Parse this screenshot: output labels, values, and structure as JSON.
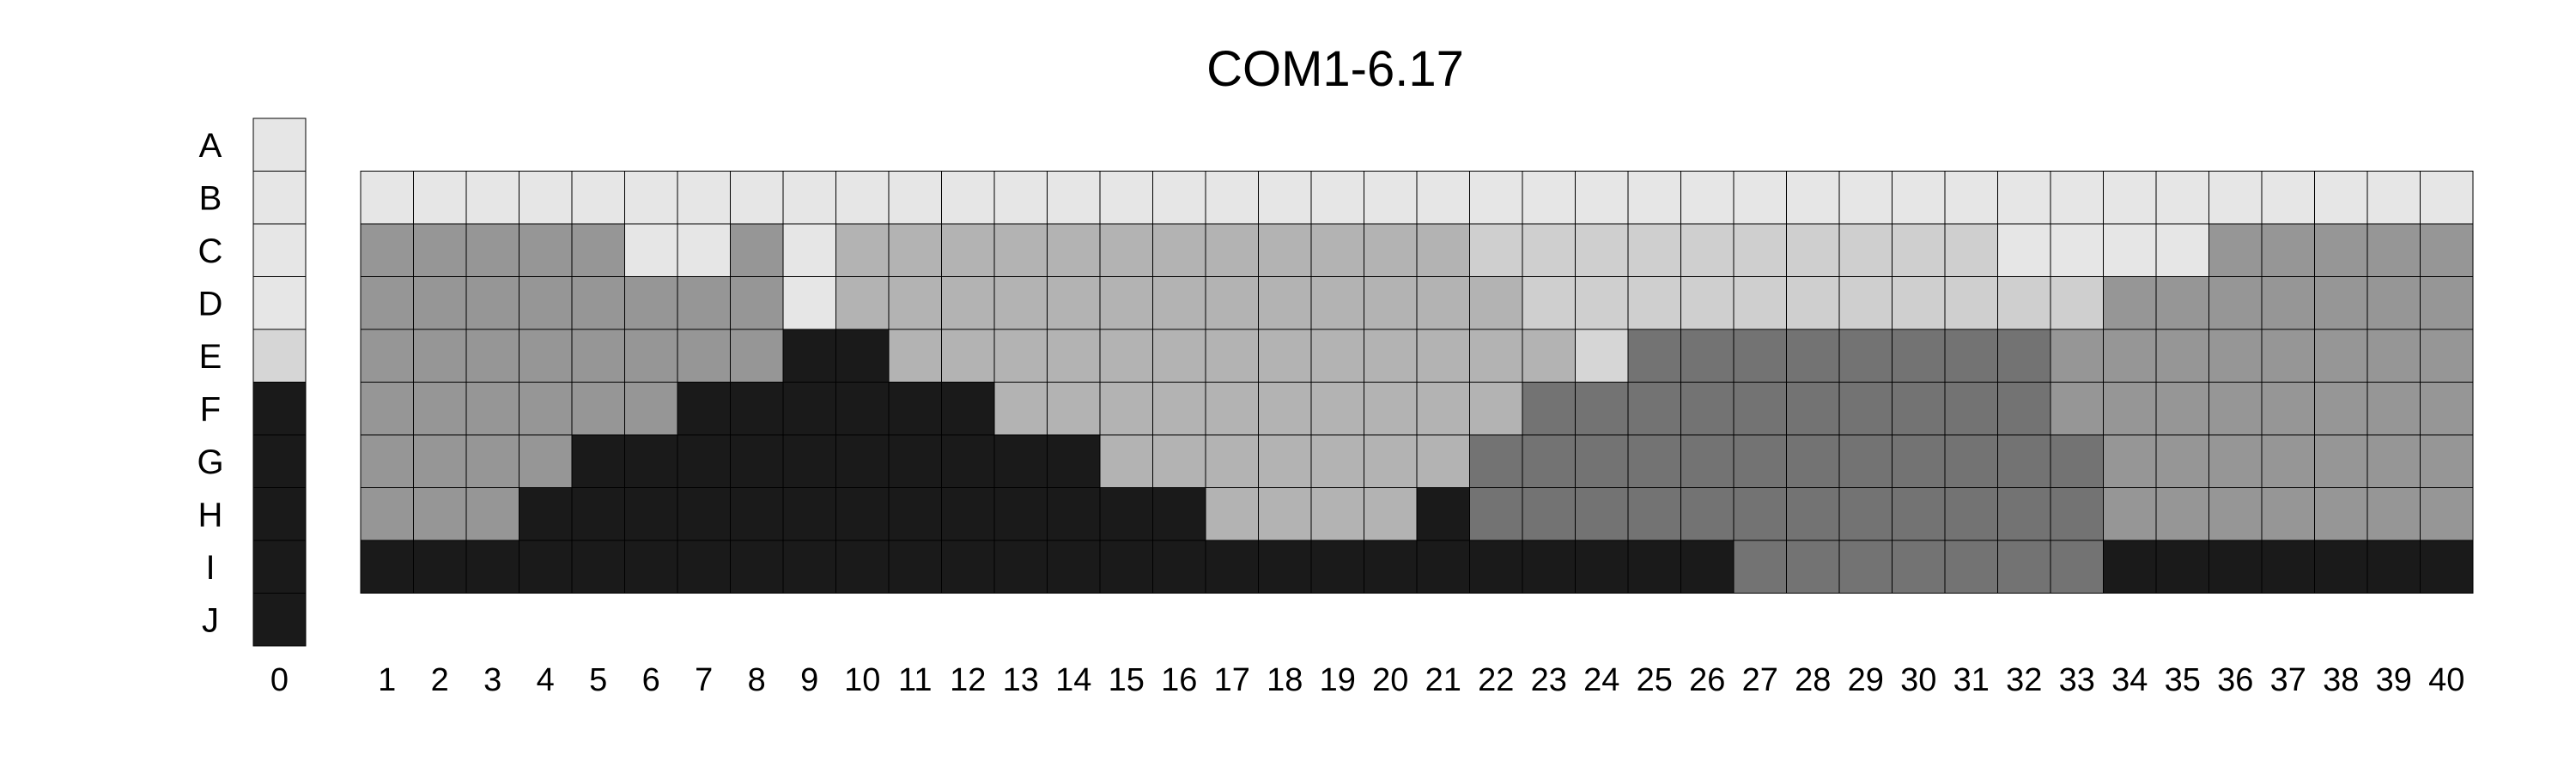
{
  "chart_data": {
    "type": "heatmap",
    "title": "COM1-6.17",
    "row_labels": [
      "A",
      "B",
      "C",
      "D",
      "E",
      "F",
      "G",
      "H",
      "I",
      "J"
    ],
    "column_labels": [
      "1",
      "2",
      "3",
      "4",
      "5",
      "6",
      "7",
      "8",
      "9",
      "10",
      "11",
      "12",
      "13",
      "14",
      "15",
      "16",
      "17",
      "18",
      "19",
      "20",
      "21",
      "22",
      "23",
      "24",
      "25",
      "26",
      "27",
      "28",
      "29",
      "30",
      "31",
      "32",
      "33",
      "34",
      "35",
      "36",
      "37",
      "38",
      "39",
      "40"
    ],
    "reference_column": {
      "label": "0",
      "values": [
        1,
        1,
        1,
        1,
        2,
        9,
        9,
        9,
        9,
        9
      ]
    },
    "grid_rows": [
      "B",
      "C",
      "D",
      "E",
      "F",
      "G",
      "H",
      "I"
    ],
    "values": [
      [
        1,
        1,
        1,
        1,
        1,
        1,
        1,
        1,
        1,
        1,
        1,
        1,
        1,
        1,
        1,
        1,
        1,
        1,
        1,
        1,
        1,
        1,
        1,
        1,
        1,
        1,
        1,
        1,
        1,
        1,
        1,
        1,
        1,
        1,
        1,
        1,
        1,
        1,
        1,
        1
      ],
      [
        6,
        6,
        6,
        6,
        6,
        1,
        1,
        6,
        1,
        4,
        4,
        4,
        4,
        4,
        4,
        4,
        4,
        4,
        4,
        4,
        4,
        3,
        3,
        3,
        3,
        3,
        3,
        3,
        3,
        3,
        3,
        1,
        1,
        1,
        1,
        6,
        6,
        6,
        6,
        6
      ],
      [
        6,
        6,
        6,
        6,
        6,
        6,
        6,
        6,
        1,
        4,
        4,
        4,
        4,
        4,
        4,
        4,
        4,
        4,
        4,
        4,
        4,
        4,
        3,
        3,
        3,
        3,
        3,
        3,
        3,
        3,
        3,
        3,
        3,
        6,
        6,
        6,
        6,
        6,
        6,
        6
      ],
      [
        6,
        6,
        6,
        6,
        6,
        6,
        6,
        6,
        9,
        9,
        4,
        4,
        4,
        4,
        4,
        4,
        4,
        4,
        4,
        4,
        4,
        4,
        4,
        2,
        8,
        8,
        8,
        8,
        8,
        8,
        8,
        8,
        6,
        6,
        6,
        6,
        6,
        6,
        6,
        6
      ],
      [
        6,
        6,
        6,
        6,
        6,
        6,
        9,
        9,
        9,
        9,
        9,
        9,
        4,
        4,
        4,
        4,
        4,
        4,
        4,
        4,
        4,
        4,
        8,
        8,
        8,
        8,
        8,
        8,
        8,
        8,
        8,
        8,
        6,
        6,
        6,
        6,
        6,
        6,
        6,
        6
      ],
      [
        6,
        6,
        6,
        6,
        9,
        9,
        9,
        9,
        9,
        9,
        9,
        9,
        9,
        9,
        4,
        4,
        4,
        4,
        4,
        4,
        4,
        8,
        8,
        8,
        8,
        8,
        8,
        8,
        8,
        8,
        8,
        8,
        8,
        6,
        6,
        6,
        6,
        6,
        6,
        6
      ],
      [
        6,
        6,
        6,
        9,
        9,
        9,
        9,
        9,
        9,
        9,
        9,
        9,
        9,
        9,
        9,
        9,
        4,
        4,
        4,
        4,
        9,
        8,
        8,
        8,
        8,
        8,
        8,
        8,
        8,
        8,
        8,
        8,
        8,
        6,
        6,
        6,
        6,
        6,
        6,
        6
      ],
      [
        9,
        9,
        9,
        9,
        9,
        9,
        9,
        9,
        9,
        9,
        9,
        9,
        9,
        9,
        9,
        9,
        9,
        9,
        9,
        9,
        9,
        9,
        9,
        9,
        9,
        9,
        8,
        8,
        8,
        8,
        8,
        8,
        8,
        9,
        9,
        9,
        9,
        9,
        9,
        9
      ]
    ],
    "legend": [
      {
        "key": 1,
        "color": "#e6e6e6"
      },
      {
        "key": 2,
        "color": "#d6d6d6"
      },
      {
        "key": 3,
        "color": "#cfcfcf"
      },
      {
        "key": 4,
        "color": "#b3b3b3"
      },
      {
        "key": 6,
        "color": "#969696"
      },
      {
        "key": 8,
        "color": "#737373"
      },
      {
        "key": 9,
        "color": "#1a1a1a"
      }
    ]
  }
}
